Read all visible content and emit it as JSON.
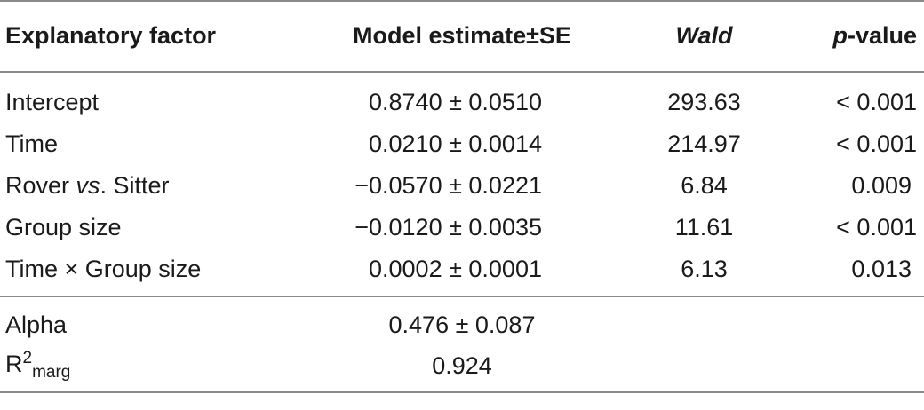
{
  "table": {
    "headers": {
      "factor": "Explanatory factor",
      "estimate": "Model estimate±SE",
      "wald": "Wald",
      "p_prefix": "p",
      "p_suffix": "-value"
    },
    "rows": [
      {
        "factor_a": "Intercept",
        "factor_ital": "",
        "factor_b": "",
        "estimate": "0.8740 ± 0.0510",
        "wald": "293.63",
        "p": "< 0.001"
      },
      {
        "factor_a": "Time",
        "factor_ital": "",
        "factor_b": "",
        "estimate": "0.0210 ± 0.0014",
        "wald": "214.97",
        "p": "< 0.001"
      },
      {
        "factor_a": "Rover ",
        "factor_ital": "vs",
        "factor_b": ". Sitter",
        "estimate": "−0.0570 ± 0.0221",
        "wald": "6.84",
        "p": "0.009"
      },
      {
        "factor_a": "Group size",
        "factor_ital": "",
        "factor_b": "",
        "estimate": "−0.0120 ± 0.0035",
        "wald": "11.61",
        "p": "< 0.001"
      },
      {
        "factor_a": "Time × Group size",
        "factor_ital": "",
        "factor_b": "",
        "estimate": "0.0002 ± 0.0001",
        "wald": "6.13",
        "p": "0.013"
      }
    ],
    "extra": {
      "alpha_label": "Alpha",
      "alpha_value": "0.476 ± 0.087",
      "r2_base": "R",
      "r2_sup": "2",
      "r2_sub": "marg",
      "r2_value": "0.924"
    }
  }
}
